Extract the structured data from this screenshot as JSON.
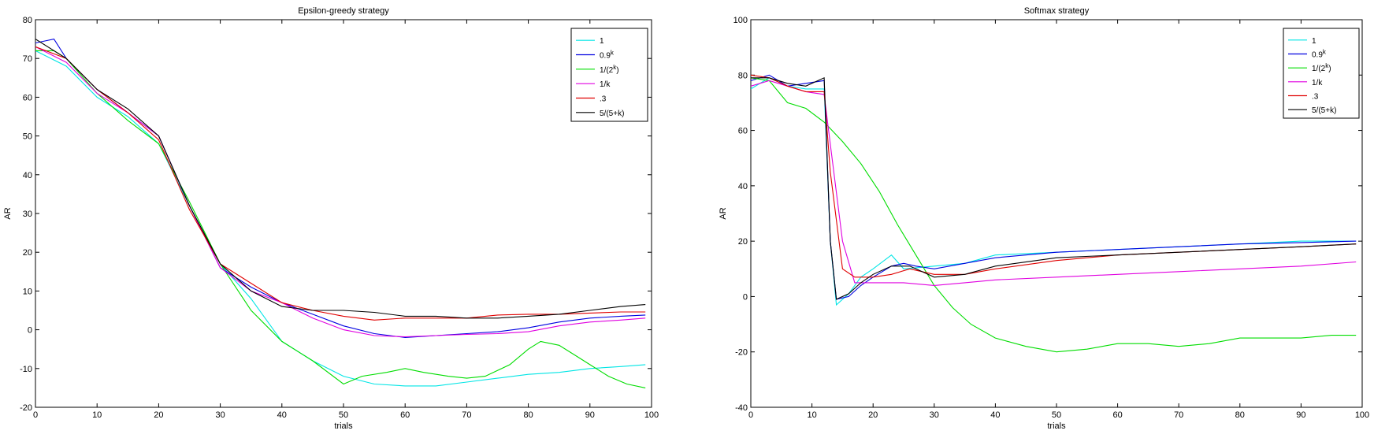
{
  "chart_data": [
    {
      "type": "line",
      "title": "Epsilon-greedy strategy",
      "xlabel": "trials",
      "ylabel": "AR",
      "xlim": [
        0,
        100
      ],
      "ylim": [
        -20,
        80
      ],
      "xticks": [
        "0",
        "10",
        "20",
        "30",
        "40",
        "50",
        "60",
        "70",
        "80",
        "90",
        "100"
      ],
      "yticks": [
        "-20",
        "-10",
        "0",
        "10",
        "20",
        "30",
        "40",
        "50",
        "60",
        "70",
        "80"
      ],
      "grid": false,
      "legend_position": "top-right",
      "series": [
        {
          "name": "1",
          "color": "#00e5e5",
          "x": [
            0,
            5,
            10,
            15,
            20,
            25,
            30,
            35,
            40,
            45,
            50,
            55,
            60,
            65,
            70,
            75,
            80,
            85,
            90,
            95,
            99
          ],
          "y": [
            72,
            68,
            60,
            55,
            48,
            32,
            17,
            8,
            -3,
            -8,
            -12,
            -14,
            -14.5,
            -14.5,
            -13.5,
            -12.5,
            -11.5,
            -11,
            -10,
            -9.5,
            -9
          ]
        },
        {
          "name": "0.9",
          "name_sup": "k",
          "color": "#0000e0",
          "x": [
            0,
            3,
            5,
            10,
            15,
            20,
            25,
            30,
            35,
            40,
            45,
            50,
            55,
            60,
            65,
            70,
            75,
            80,
            85,
            90,
            95,
            99
          ],
          "y": [
            74,
            75,
            70,
            62,
            56,
            50,
            32,
            16,
            11,
            7,
            4,
            1,
            -1,
            -2,
            -1.5,
            -1,
            -0.5,
            0.5,
            2,
            3,
            3.5,
            3.8
          ]
        },
        {
          "name": "1/(2",
          "name_sup": "k",
          "name_tail": ")",
          "color": "#00dd00",
          "x": [
            0,
            3,
            5,
            10,
            15,
            20,
            25,
            30,
            35,
            40,
            45,
            50,
            53,
            57,
            60,
            63,
            67,
            70,
            73,
            77,
            80,
            82,
            85,
            88,
            90,
            93,
            96,
            99
          ],
          "y": [
            72,
            72,
            70,
            61,
            54,
            48,
            33,
            17,
            5,
            -3,
            -8,
            -14,
            -12,
            -11,
            -10,
            -11,
            -12,
            -12.5,
            -12,
            -9,
            -5,
            -3,
            -4,
            -7,
            -9,
            -12,
            -14,
            -15
          ]
        },
        {
          "name": "1/k",
          "color": "#e000e0",
          "x": [
            0,
            5,
            10,
            15,
            20,
            25,
            30,
            35,
            40,
            45,
            50,
            55,
            60,
            65,
            70,
            75,
            80,
            85,
            90,
            95,
            99
          ],
          "y": [
            73,
            69,
            61,
            56,
            50,
            32,
            16,
            10,
            7,
            3,
            0,
            -1.5,
            -1.8,
            -1.5,
            -1.2,
            -1,
            -0.5,
            1,
            2,
            2.5,
            3
          ]
        },
        {
          "name": ".3",
          "color": "#e00000",
          "x": [
            0,
            5,
            10,
            15,
            20,
            25,
            30,
            35,
            40,
            45,
            50,
            55,
            60,
            65,
            70,
            75,
            80,
            85,
            90,
            95,
            99
          ],
          "y": [
            73,
            70,
            62,
            56,
            49,
            31,
            17,
            12,
            7,
            5,
            3.5,
            2.5,
            3,
            3,
            3,
            3.8,
            4,
            4,
            4.3,
            4.6,
            4.6
          ]
        },
        {
          "name": "5/(5+k)",
          "color": "#000000",
          "x": [
            0,
            5,
            10,
            15,
            20,
            25,
            30,
            35,
            40,
            45,
            50,
            55,
            60,
            65,
            70,
            75,
            80,
            85,
            90,
            95,
            99
          ],
          "y": [
            75,
            70,
            62,
            57,
            50,
            32,
            17,
            10,
            6,
            5,
            5,
            4.5,
            3.5,
            3.5,
            3,
            3,
            3.5,
            4,
            5,
            6,
            6.5
          ]
        }
      ]
    },
    {
      "type": "line",
      "title": "Softmax strategy",
      "xlabel": "trials",
      "ylabel": "AR",
      "xlim": [
        0,
        100
      ],
      "ylim": [
        -40,
        100
      ],
      "xticks": [
        "0",
        "10",
        "20",
        "30",
        "40",
        "50",
        "60",
        "70",
        "80",
        "90",
        "100"
      ],
      "yticks": [
        "-40",
        "-20",
        "0",
        "20",
        "40",
        "60",
        "80",
        "100"
      ],
      "grid": false,
      "legend_position": "top-right",
      "series": [
        {
          "name": "1",
          "color": "#00e5e5",
          "x": [
            0,
            3,
            6,
            9,
            12,
            13,
            14,
            16,
            18,
            20,
            23,
            25,
            30,
            35,
            40,
            50,
            60,
            70,
            80,
            90,
            99
          ],
          "y": [
            75,
            79,
            76,
            75,
            75,
            20,
            -3,
            1,
            7,
            10,
            15,
            10,
            11,
            12,
            15,
            16,
            17,
            18,
            19,
            20,
            20
          ]
        },
        {
          "name": "0.9",
          "name_sup": "k",
          "color": "#0000e0",
          "x": [
            0,
            3,
            6,
            9,
            12,
            13,
            14,
            16,
            18,
            20,
            23,
            25,
            27,
            30,
            35,
            40,
            50,
            60,
            70,
            80,
            90,
            99
          ],
          "y": [
            78,
            80,
            76,
            77,
            78,
            20,
            -1,
            0,
            4,
            7,
            11,
            12,
            11,
            10,
            12,
            14,
            16,
            17,
            18,
            19,
            19.5,
            20
          ]
        },
        {
          "name": "1/(2",
          "name_sup": "k",
          "name_tail": ")",
          "color": "#00dd00",
          "x": [
            0,
            3,
            6,
            9,
            12,
            15,
            18,
            21,
            24,
            27,
            30,
            33,
            36,
            40,
            45,
            50,
            55,
            60,
            65,
            70,
            75,
            80,
            85,
            90,
            95,
            99
          ],
          "y": [
            79,
            78,
            70,
            68,
            63,
            56,
            48,
            38,
            26,
            15,
            4,
            -4,
            -10,
            -15,
            -18,
            -20,
            -19,
            -17,
            -17,
            -18,
            -17,
            -15,
            -15,
            -15,
            -14,
            -14
          ]
        },
        {
          "name": "1/k",
          "color": "#e000e0",
          "x": [
            0,
            3,
            6,
            9,
            12,
            13,
            15,
            17,
            20,
            25,
            30,
            35,
            40,
            50,
            60,
            70,
            80,
            90,
            99
          ],
          "y": [
            76,
            78,
            76,
            74,
            73,
            55,
            20,
            5,
            5,
            5,
            4,
            5,
            6,
            7,
            8,
            9,
            10,
            11,
            12.5
          ]
        },
        {
          "name": ".3",
          "color": "#e00000",
          "x": [
            0,
            3,
            6,
            9,
            12,
            13,
            15,
            17,
            20,
            23,
            26,
            30,
            35,
            40,
            50,
            60,
            70,
            80,
            90,
            99
          ],
          "y": [
            80,
            79,
            76,
            74,
            74,
            45,
            10,
            7,
            7,
            8,
            10,
            8,
            8,
            10,
            13,
            15,
            16,
            17,
            18,
            19
          ]
        },
        {
          "name": "5/(5+k)",
          "color": "#000000",
          "x": [
            0,
            3,
            6,
            9,
            12,
            13,
            14,
            16,
            18,
            20,
            23,
            26,
            28,
            30,
            35,
            40,
            50,
            60,
            70,
            80,
            90,
            99
          ],
          "y": [
            79,
            79,
            77,
            76,
            79,
            20,
            -1,
            1,
            5,
            8,
            11,
            11,
            9,
            7,
            8,
            11,
            14,
            15,
            16,
            17,
            18,
            19
          ]
        }
      ]
    }
  ]
}
